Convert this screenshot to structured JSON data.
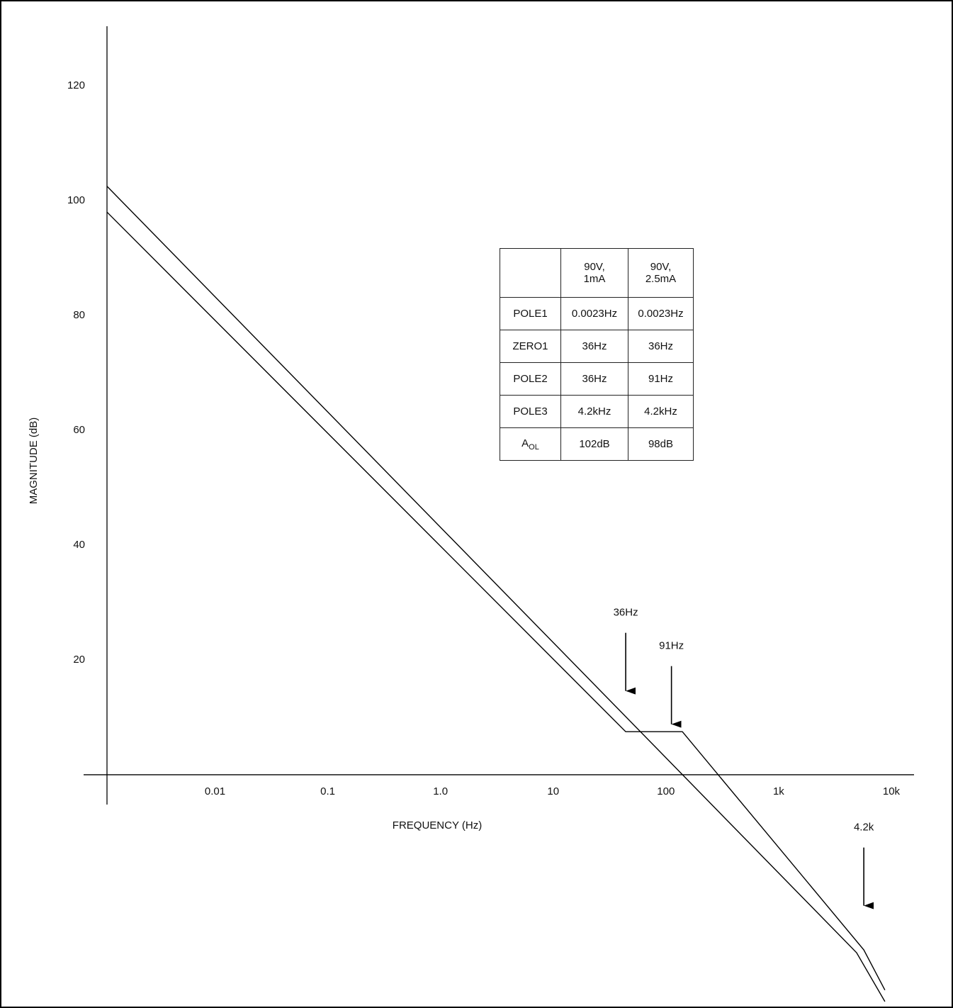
{
  "chart_data": {
    "type": "line",
    "xlabel": "FREQUENCY (Hz)",
    "ylabel": "MAGNITUDE (dB)",
    "xscale": "log",
    "xlim": [
      0.0011,
      15900
    ],
    "ylim": [
      -40.5,
      130
    ],
    "xticks": [
      0.01,
      0.1,
      {
        "value": 1,
        "label": "1.0"
      },
      10,
      100,
      {
        "value": 1000,
        "label": "1k"
      },
      {
        "value": 10000,
        "label": "10k"
      }
    ],
    "yticks": [
      20,
      40,
      60,
      80,
      100,
      120
    ],
    "grid": false,
    "series": [
      {
        "color": "#000000",
        "x": [
          0.0011,
          44,
          140,
          5700,
          8770
        ],
        "values": [
          98,
          7.5,
          7.5,
          -30.5,
          -37.5
        ]
      },
      {
        "color": "#000000",
        "x": [
          0.0011,
          4920,
          8770
        ],
        "values": [
          102.5,
          -31,
          -39.5
        ]
      }
    ],
    "annotations": [
      {
        "text": "36Hz",
        "x": 44,
        "y": 14.6
      },
      {
        "text": "91Hz",
        "x": 112,
        "y": 8.8
      },
      {
        "text": "4.2k",
        "x": 5700,
        "y": -22.8
      }
    ],
    "table": {
      "columns": [
        "90V, 1mA",
        "90V, 2.5mA"
      ],
      "rows": [
        {
          "label": "POLE1",
          "cells": [
            "0.0023Hz",
            "0.0023Hz"
          ]
        },
        {
          "label": "ZERO1",
          "cells": [
            "36Hz",
            "36Hz"
          ]
        },
        {
          "label": "POLE2",
          "cells": [
            "36Hz",
            "91Hz"
          ]
        },
        {
          "label": "POLE3",
          "cells": [
            "4.2kHz",
            "4.2kHz"
          ]
        },
        {
          "label": "A",
          "label_sub": "OL",
          "cells": [
            "102dB",
            "98dB"
          ]
        }
      ]
    }
  }
}
